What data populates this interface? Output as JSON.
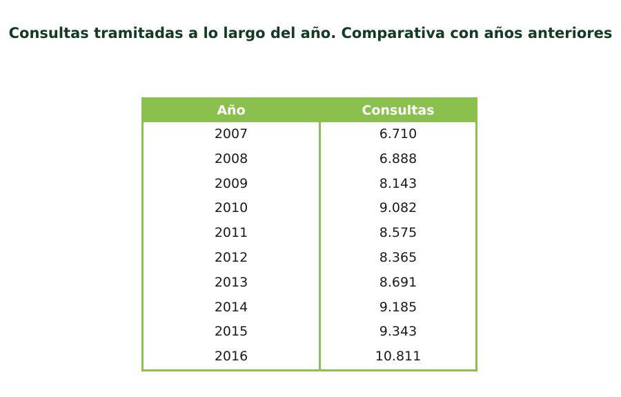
{
  "header": {
    "title": "Consultas tramitadas a lo largo del año. Comparativa con años anteriores"
  },
  "colors": {
    "accent": "#8cc04e",
    "title": "#123a24",
    "text": "#1a1a1a"
  },
  "chart_data": {
    "type": "table",
    "title": "Consultas tramitadas a lo largo del año. Comparativa con años anteriores",
    "columns": [
      "Año",
      "Consultas"
    ],
    "rows": [
      [
        "2007",
        "6.710"
      ],
      [
        "2008",
        "6.888"
      ],
      [
        "2009",
        "8.143"
      ],
      [
        "2010",
        "9.082"
      ],
      [
        "2011",
        "8.575"
      ],
      [
        "2012",
        "8.365"
      ],
      [
        "2013",
        "8.691"
      ],
      [
        "2014",
        "9.185"
      ],
      [
        "2015",
        "9.343"
      ],
      [
        "2016",
        "10.811"
      ]
    ]
  }
}
